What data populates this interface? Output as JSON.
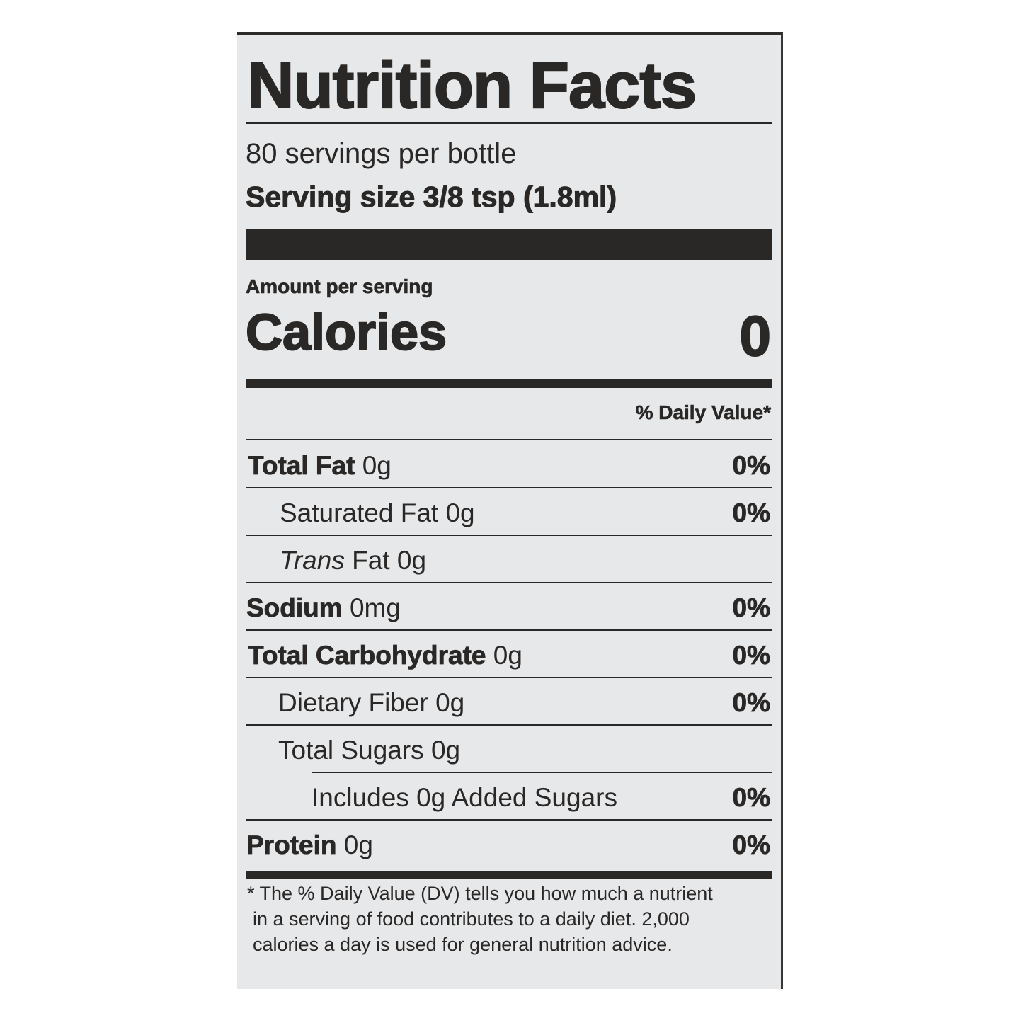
{
  "title": "Nutrition Facts",
  "servings_per_container": "80 servings per bottle",
  "serving_size": "Serving size 3/8 tsp (1.8ml)",
  "amount_per_serving": "Amount per serving",
  "calories_label": "Calories",
  "calories_value": "0",
  "daily_value_header": "% Daily Value*",
  "nutrients": [
    {
      "name": "Total Fat",
      "amount": "0g",
      "dv": "0%"
    },
    {
      "name": "Saturated Fat",
      "amount": "0g",
      "dv": "0%"
    },
    {
      "name": "Trans",
      "name_suffix": "Fat",
      "amount": "0g",
      "dv": ""
    },
    {
      "name": "Sodium",
      "amount": "0mg",
      "dv": "0%"
    },
    {
      "name": "Total Carbohydrate",
      "amount": "0g",
      "dv": "0%"
    },
    {
      "name": "Dietary Fiber",
      "amount": "0g",
      "dv": "0%"
    },
    {
      "name": "Total Sugars",
      "amount": "0g",
      "dv": ""
    },
    {
      "name": "Includes 0g Added Sugars",
      "amount": "",
      "dv": "0%"
    },
    {
      "name": "Protein",
      "amount": "0g",
      "dv": "0%"
    }
  ],
  "footnote": [
    "* The % Daily Value (DV) tells you how much a nutrient",
    "in a serving of food contributes to a daily diet. 2,000",
    "calories a day is used for general nutrition advice."
  ]
}
